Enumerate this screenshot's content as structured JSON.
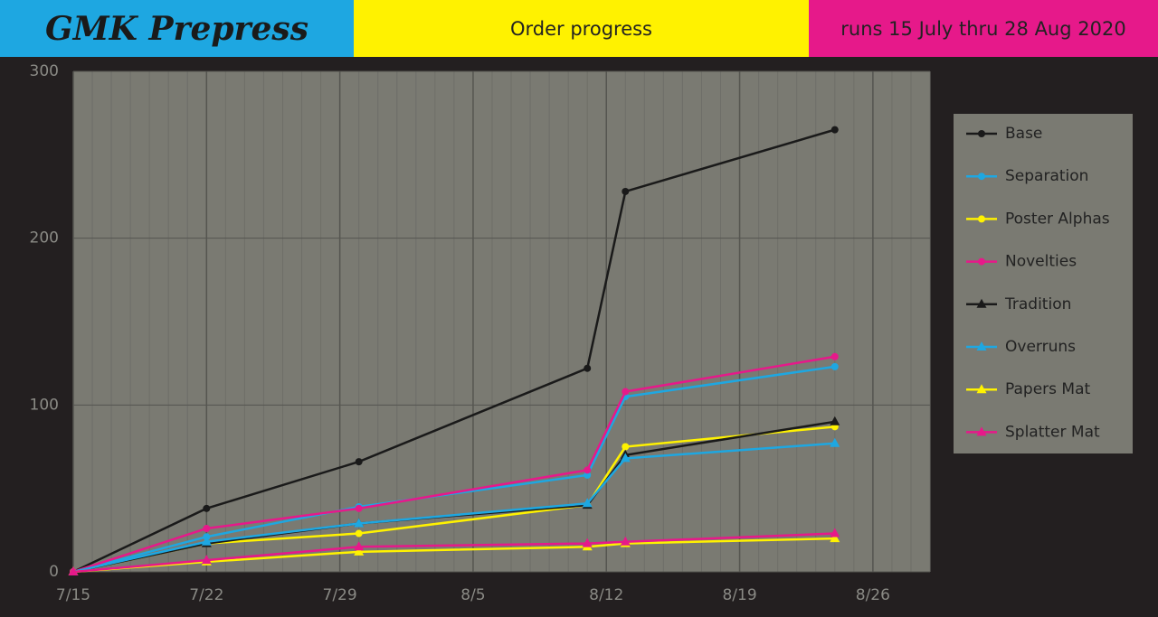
{
  "header": {
    "brand": "GMK Prepress",
    "subtitle": "Order progress",
    "dates": "runs 15 July thru 28 Aug 2020"
  },
  "chart_data": {
    "type": "line",
    "x": [
      "7/15",
      "7/22",
      "7/30",
      "8/11",
      "8/13",
      "8/24"
    ],
    "xlim": [
      "7/15",
      "8/29"
    ],
    "xticks": [
      "7/15",
      "7/22",
      "7/29",
      "8/5",
      "8/12",
      "8/19",
      "8/26"
    ],
    "ylim": [
      0,
      300
    ],
    "yticks": [
      0,
      100,
      200,
      300
    ],
    "grid": true,
    "legend": "right",
    "series": [
      {
        "name": "Base",
        "color": "#1a1a1a",
        "marker": "circle",
        "values": [
          0,
          38,
          66,
          122,
          228,
          265
        ]
      },
      {
        "name": "Separation",
        "color": "#1ea7e1",
        "marker": "circle",
        "values": [
          0,
          21,
          39,
          58,
          105,
          123
        ]
      },
      {
        "name": "Poster Alphas",
        "color": "#fff200",
        "marker": "circle",
        "values": [
          0,
          17,
          23,
          40,
          75,
          87
        ]
      },
      {
        "name": "Novelties",
        "color": "#e6198a",
        "marker": "circle",
        "values": [
          0,
          26,
          38,
          61,
          108,
          129
        ]
      },
      {
        "name": "Tradition",
        "color": "#1a1a1a",
        "marker": "triangle",
        "values": [
          0,
          17,
          29,
          40,
          70,
          90
        ]
      },
      {
        "name": "Overruns",
        "color": "#1ea7e1",
        "marker": "triangle",
        "values": [
          0,
          18,
          29,
          41,
          68,
          77
        ]
      },
      {
        "name": "Papers Mat",
        "color": "#fff200",
        "marker": "triangle",
        "values": [
          0,
          6,
          12,
          15,
          17,
          20
        ]
      },
      {
        "name": "Splatter Mat",
        "color": "#e6198a",
        "marker": "triangle",
        "values": [
          0,
          7,
          15,
          17,
          18,
          23
        ]
      }
    ]
  }
}
